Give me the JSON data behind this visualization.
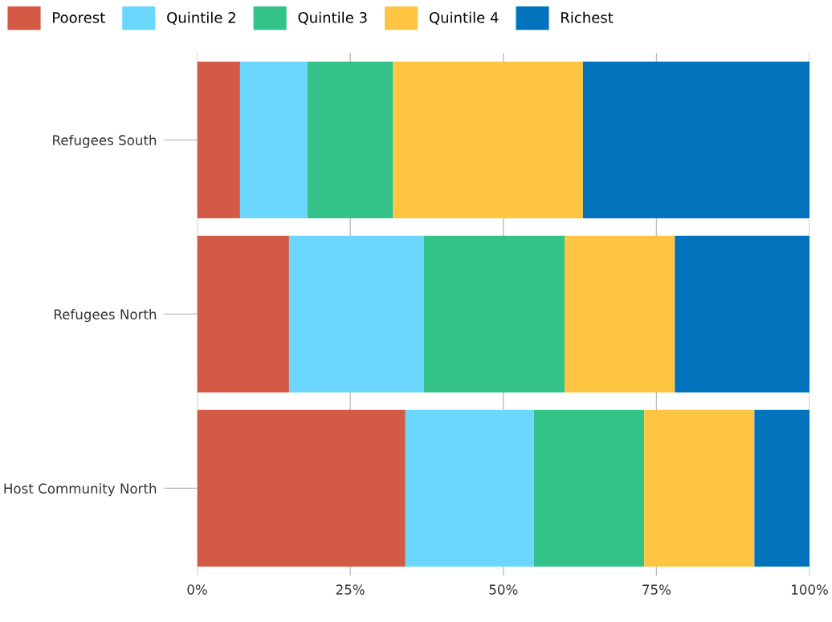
{
  "chart_data": {
    "type": "bar",
    "orientation": "horizontal",
    "stacked": true,
    "categories": [
      "Refugees South",
      "Refugees North",
      "Host Community North"
    ],
    "series": [
      {
        "name": "Poorest",
        "color": "#d35a44",
        "values": [
          7,
          15,
          34
        ]
      },
      {
        "name": "Quintile 2",
        "color": "#6bd7fe",
        "values": [
          11,
          22,
          21
        ]
      },
      {
        "name": "Quintile 3",
        "color": "#33c389",
        "values": [
          14,
          23,
          18
        ]
      },
      {
        "name": "Quintile 4",
        "color": "#fec543",
        "values": [
          31,
          18,
          18
        ]
      },
      {
        "name": "Richest",
        "color": "#0073bc",
        "values": [
          37,
          22,
          9
        ]
      }
    ],
    "xlim": [
      0,
      100
    ],
    "xticks": [
      {
        "value": 0,
        "label": "0%"
      },
      {
        "value": 25,
        "label": "25%"
      },
      {
        "value": 50,
        "label": "50%"
      },
      {
        "value": 75,
        "label": "75%"
      },
      {
        "value": 100,
        "label": "100%"
      }
    ],
    "grid": "x",
    "legend": "top left"
  }
}
